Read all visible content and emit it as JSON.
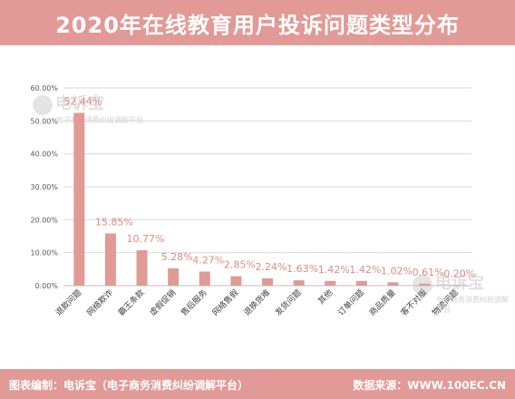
{
  "header": {
    "title": "2020年在线教育用户投诉问题类型分布"
  },
  "watermark": {
    "brand": "电诉宝",
    "subtitle": "电子商务消费纠纷调解平台"
  },
  "footer": {
    "left": "图表编制：电诉宝（电子商务消费纠纷调解平台）",
    "right": "数据来源：WWW.100EC.CN"
  },
  "colors": {
    "accent": "#e19a96",
    "bar": "#e19a96",
    "label": "#e08a84",
    "grid": "#d9d9d9"
  },
  "chart_data": {
    "type": "bar",
    "categories": [
      "退款问题",
      "网络欺诈",
      "霸王条款",
      "虚假促销",
      "售后服务",
      "网络售假",
      "退换货难",
      "发货问题",
      "其他",
      "订单问题",
      "商品质量",
      "客不对版",
      "物流问题"
    ],
    "values": [
      52.44,
      15.85,
      10.77,
      5.28,
      4.27,
      2.85,
      2.24,
      1.63,
      1.42,
      1.42,
      1.02,
      0.61,
      0.2
    ],
    "data_labels": [
      "52.44%",
      "15.85%",
      "10.77%",
      "5.28%",
      "4.27%",
      "2.85%",
      "2.24%",
      "1.63%",
      "1.42%",
      "1.42%",
      "1.02%",
      "0.61%",
      "0.20%"
    ],
    "y_ticks": [
      "0.00%",
      "10.00%",
      "20.00%",
      "30.00%",
      "40.00%",
      "50.00%",
      "60.00%"
    ],
    "ylim": [
      0,
      60
    ],
    "grid": true,
    "legend": "none"
  }
}
